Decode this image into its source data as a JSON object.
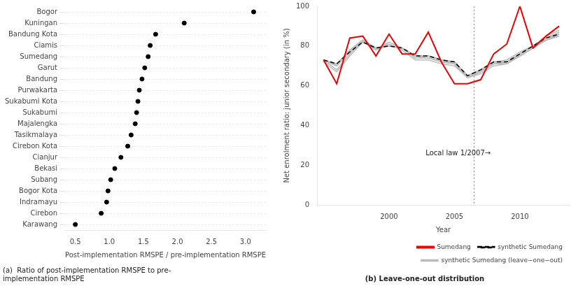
{
  "chart_data": [
    {
      "type": "scatter",
      "orientation": "horizontal",
      "title": "(a)  Ratio of post-implementation RMSPE to pre-\nimplementation RMSPE",
      "xlabel": "Post-implementation RMSPE / pre-implementation RMSPE",
      "categories": [
        "Bogor",
        "Kuningan",
        "Bandung Kota",
        "Ciamis",
        "Sumedang",
        "Garut",
        "Bandung",
        "Purwakarta",
        "Sukabumi Kota",
        "Sukabumi",
        "Majalengka",
        "Tasikmalaya",
        "Cirebon Kota",
        "Cianjur",
        "Bekasi",
        "Subang",
        "Bogor Kota",
        "Indramayu",
        "Cirebon",
        "Karawang"
      ],
      "values": [
        3.12,
        2.1,
        1.68,
        1.6,
        1.57,
        1.52,
        1.48,
        1.44,
        1.42,
        1.4,
        1.38,
        1.32,
        1.27,
        1.17,
        1.08,
        1.02,
        0.98,
        0.96,
        0.88,
        0.5
      ],
      "color": "#000000",
      "marker": "circle",
      "xlim": [
        0.35,
        3.3
      ],
      "xticks": [
        0.5,
        {
          "value": 1,
          "label": "1.0"
        },
        1.5,
        {
          "value": 2,
          "label": "2.0"
        },
        2.5,
        {
          "value": 3,
          "label": "3.0"
        }
      ],
      "grid": "y"
    },
    {
      "type": "line",
      "title": "(b) Leave-one-out distribution",
      "xlabel": "Year",
      "ylabel": "Net enrolment ratio: junior secondary (in %)",
      "x": [
        1995,
        1996,
        1997,
        1998,
        1999,
        2000,
        2001,
        2002,
        2003,
        2004,
        2005,
        2006,
        2007,
        2008,
        2009,
        2010,
        2011,
        2012,
        2013
      ],
      "series": [
        {
          "name": "Sumedang",
          "color": "#EE0000",
          "line_style": "solid",
          "values": [
            73,
            61,
            84,
            85,
            75,
            86,
            76,
            76,
            87,
            72,
            61,
            61,
            63,
            76,
            81,
            100,
            79,
            85,
            90
          ]
        },
        {
          "name": "synthetic Sumedang",
          "color": "#000000",
          "line_style": "dashed",
          "values": [
            73,
            71,
            77,
            82,
            79,
            80,
            79,
            75,
            75,
            73,
            72,
            65,
            68,
            72,
            72,
            76,
            80,
            84,
            86
          ]
        },
        {
          "name": "synthetic Sumedang (leave−one−out)",
          "color": "#BBBBBB",
          "line_style": "solid",
          "values": [
            73,
            68,
            76,
            83,
            78,
            82,
            79,
            74,
            74,
            72,
            71,
            64,
            67,
            71,
            71,
            75,
            79,
            83,
            85
          ]
        },
        {
          "name": "synthetic Sumedang (leave−one−out)",
          "color": "#BBBBBB",
          "line_style": "solid",
          "values": [
            73,
            70,
            78,
            83,
            79,
            80,
            79,
            75,
            75,
            73,
            71,
            64,
            68,
            72,
            72,
            76,
            80,
            83,
            86
          ]
        },
        {
          "name": "synthetic Sumedang (leave−one−out)",
          "color": "#BBBBBB",
          "line_style": "solid",
          "values": [
            73,
            70,
            77,
            82,
            79,
            80,
            79,
            75,
            75,
            73,
            72,
            65,
            68,
            72,
            72,
            76,
            80,
            84,
            87
          ]
        },
        {
          "name": "synthetic Sumedang (leave−one−out)",
          "color": "#BBBBBB",
          "line_style": "solid",
          "values": [
            73,
            71,
            77,
            82,
            79,
            80,
            79,
            75,
            75,
            73,
            72,
            65,
            68,
            72,
            72,
            76,
            80,
            84,
            86
          ]
        },
        {
          "name": "synthetic Sumedang (leave−one−out)",
          "color": "#BBBBBB",
          "line_style": "solid",
          "values": [
            73,
            70,
            77,
            82,
            79,
            80,
            79,
            75,
            74,
            72,
            71,
            65,
            67,
            71,
            72,
            75,
            79,
            83,
            85
          ]
        },
        {
          "name": "synthetic Sumedang (leave−one−out)",
          "color": "#BBBBBB",
          "line_style": "solid",
          "values": [
            73,
            71,
            78,
            83,
            79,
            81,
            79,
            75,
            75,
            73,
            71,
            65,
            68,
            72,
            72,
            76,
            80,
            84,
            87
          ]
        },
        {
          "name": "synthetic Sumedang (leave−one−out)",
          "color": "#BBBBBB",
          "line_style": "solid",
          "values": [
            73,
            71,
            77,
            83,
            79,
            80,
            79,
            75,
            75,
            73,
            72,
            65,
            68,
            72,
            73,
            77,
            80,
            85,
            88
          ]
        },
        {
          "name": "synthetic Sumedang (leave−one−out)",
          "color": "#BBBBBB",
          "line_style": "solid",
          "values": [
            73,
            70,
            77,
            82,
            79,
            80,
            79,
            74,
            74,
            72,
            72,
            65,
            67,
            71,
            71,
            75,
            79,
            83,
            85
          ]
        },
        {
          "name": "synthetic Sumedang (leave−one−out)",
          "color": "#BBBBBB",
          "line_style": "solid",
          "values": [
            72,
            67,
            75,
            82,
            78,
            81,
            78,
            73,
            73,
            71,
            70,
            64,
            66,
            70,
            71,
            75,
            79,
            83,
            85
          ]
        }
      ],
      "annotations": [
        {
          "type": "vline",
          "x": 2006.5
        },
        {
          "type": "text",
          "text": "Local law 1/2007→",
          "x": 2002.8,
          "y": 26
        }
      ],
      "xlim": [
        1994.5,
        2013.8
      ],
      "xticks": [
        2000,
        2005,
        2010
      ],
      "ylim": [
        0,
        100
      ],
      "yticks": [
        0,
        20,
        40,
        60,
        80,
        100
      ],
      "grid": false,
      "legend": "lower right"
    }
  ]
}
